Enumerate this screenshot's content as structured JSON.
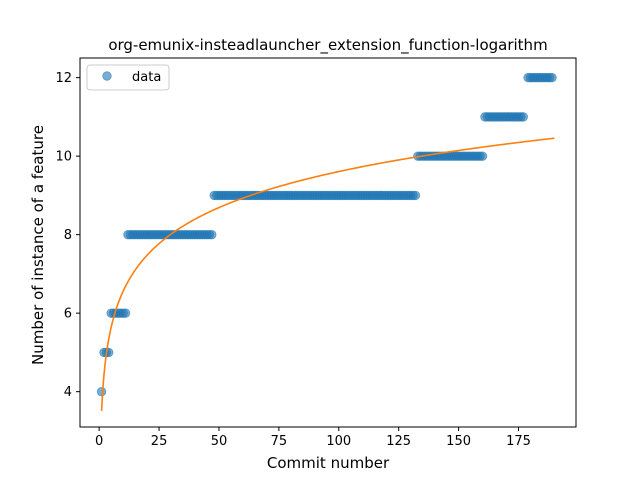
{
  "chart_data": {
    "type": "scatter",
    "title": "org-emunix-insteadlauncher_extension_function-logarithm",
    "xlabel": "Commit number",
    "ylabel": "Number of instance of a feature",
    "xlim": [
      -8,
      199
    ],
    "ylim": [
      3.1,
      12.5
    ],
    "xticks": [
      0,
      25,
      50,
      75,
      100,
      125,
      150,
      175
    ],
    "yticks": [
      4,
      6,
      8,
      10,
      12
    ],
    "grid": false,
    "legend": {
      "position": "top-left",
      "entries": [
        "data"
      ]
    },
    "colors": {
      "data": "#1f77b4",
      "fit": "#ff7f0e"
    },
    "series": [
      {
        "name": "data",
        "kind": "scatter",
        "steps": [
          {
            "x_start": 1,
            "x_end": 1,
            "y": 4
          },
          {
            "x_start": 2,
            "x_end": 4,
            "y": 5
          },
          {
            "x_start": 5,
            "x_end": 11,
            "y": 6
          },
          {
            "x_start": 12,
            "x_end": 47,
            "y": 8
          },
          {
            "x_start": 48,
            "x_end": 132,
            "y": 9
          },
          {
            "x_start": 133,
            "x_end": 160,
            "y": 10
          },
          {
            "x_start": 161,
            "x_end": 177,
            "y": 11
          },
          {
            "x_start": 179,
            "x_end": 189,
            "y": 12
          }
        ]
      },
      {
        "kind": "line",
        "fit": "logarithmic",
        "a": 1.324,
        "b": 3.51,
        "x_range": [
          1,
          190
        ]
      }
    ]
  }
}
